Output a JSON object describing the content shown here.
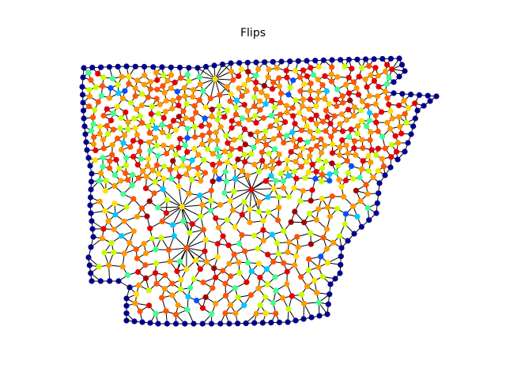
{
  "figure": {
    "title": "Flips"
  },
  "chart_data": {
    "type": "network-graph",
    "title": "Flips",
    "colormap": "jet",
    "boundary_node_color": "#00008b",
    "edge_color": "#000000",
    "palette": [
      "#00008b",
      "#0050ff",
      "#00c8ff",
      "#40ff90",
      "#c8ff00",
      "#ffe000",
      "#ff9900",
      "#ff5500",
      "#e60000",
      "#a00000"
    ],
    "palette_weights": [
      0,
      2,
      4,
      10,
      16,
      10,
      22,
      18,
      14,
      4
    ],
    "grid": false,
    "axes": false
  }
}
